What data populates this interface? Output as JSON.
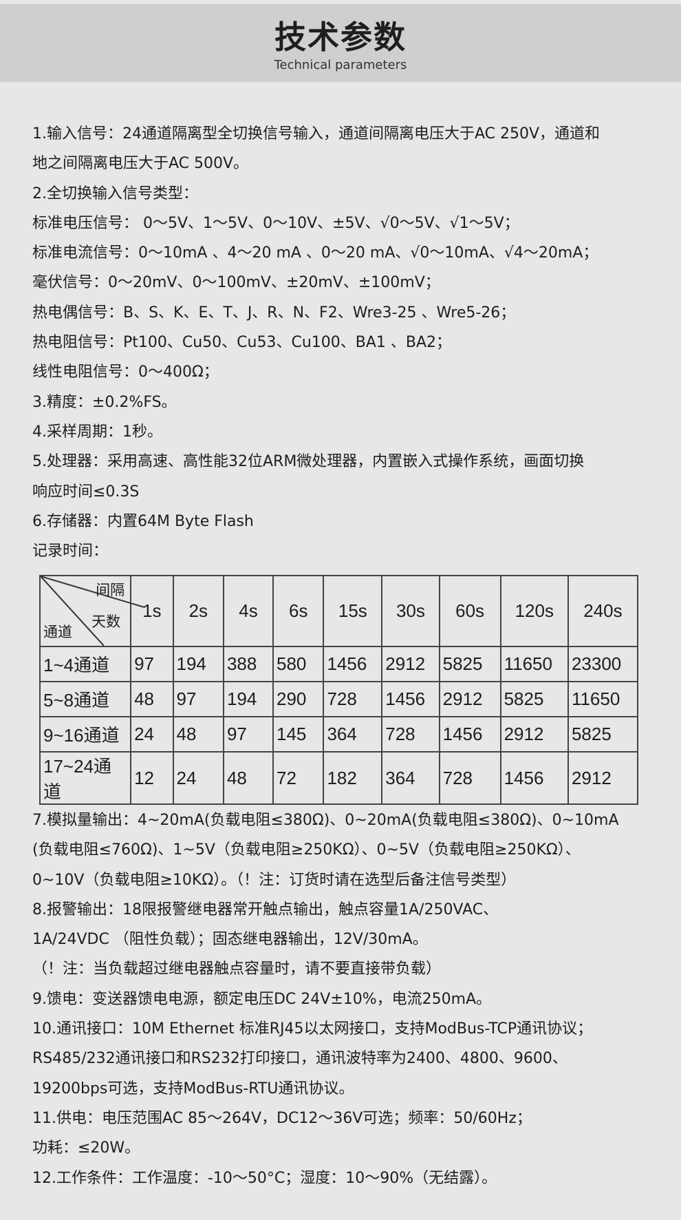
{
  "header": {
    "title": "技术参数",
    "subtitle": "Technical parameters"
  },
  "upper_lines": [
    "1.输入信号：24通道隔离型全切换信号输入，通道间隔离电压大于AC 250V，通道和",
    "地之间隔离电压大于AC 500V。",
    "2.全切换输入信号类型：",
    "标准电压信号： 0～5V、1～5V、0～10V、±5V、√0～5V、√1～5V；",
    "标准电流信号：0～10mA 、4～20 mA 、0～20 mA、√0～10mA、√4～20mA；",
    "毫伏信号：0～20mV、0～100mV、±20mV、±100mV；",
    "热电偶信号：B、S、K、E、T、J、R、N、F2、Wre3-25 、Wre5-26；",
    "热电阻信号：Pt100、Cu50、Cu53、Cu100、BA1 、BA2；",
    "线性电阻信号：0～400Ω；",
    "3.精度：±0.2%FS。",
    "4.采样周期：1秒。",
    "5.处理器：采用高速、高性能32位ARM微处理器，内置嵌入式操作系统，画面切换",
    "响应时间≤0.3S",
    "6.存储器：内置64M Byte Flash",
    "记录时间："
  ],
  "table": {
    "corner": {
      "interval": "间隔",
      "days": "天数",
      "channel": "通道"
    },
    "columns": [
      "1s",
      "2s",
      "4s",
      "6s",
      "15s",
      "30s",
      "60s",
      "120s",
      "240s"
    ],
    "rows": [
      {
        "label": "1~4通道",
        "values": [
          "97",
          "194",
          "388",
          "580",
          "1456",
          "2912",
          "5825",
          "11650",
          "23300"
        ]
      },
      {
        "label": "5~8通道",
        "values": [
          "48",
          "97",
          "194",
          "290",
          "728",
          "1456",
          "2912",
          "5825",
          "11650"
        ]
      },
      {
        "label": "9~16通道",
        "values": [
          "24",
          "48",
          "97",
          "145",
          "364",
          "728",
          "1456",
          "2912",
          "5825"
        ]
      },
      {
        "label": "17~24通道",
        "values": [
          "12",
          "24",
          "48",
          "72",
          "182",
          "364",
          "728",
          "1456",
          "2912"
        ]
      }
    ]
  },
  "lower_lines": [
    "7.模拟量输出：4~20mA(负载电阻≤380Ω)、0~20mA(负载电阻≤380Ω)、0~10mA",
    "(负载电阻≤760Ω)、1~5V（负载电阻≥250KΩ）、0~5V（负载电阻≥250KΩ）、",
    "0~10V（负载电阻≥10KΩ）。（！注：订货时请在选型后备注信号类型）",
    "8.报警输出：18限报警继电器常开触点输出，触点容量1A/250VAC、",
    "1A/24VDC  （阻性负载）；固态继电器输出，12V/30mA。",
    "（！注：当负载超过继电器触点容量时，请不要直接带负载）",
    "9.馈电：变送器馈电电源，额定电压DC 24V±10%，电流250mA。",
    "10.通讯接口：10M  Ethernet 标准RJ45以太网接口，支持ModBus-TCP通讯协议；",
    "RS485/232通讯接口和RS232打印接口，通讯波特率为2400、4800、9600、",
    "19200bps可选，支持ModBus-RTU通讯协议。",
    "11.供电：电压范围AC 85～264V，DC12～36V可选；频率：50/60Hz；",
    "功耗：≤20W。",
    "12.工作条件：工作温度：-10～50°C；湿度：10～90%（无结露）。"
  ]
}
